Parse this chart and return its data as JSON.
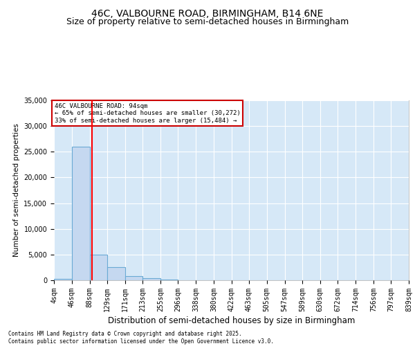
{
  "title": "46C, VALBOURNE ROAD, BIRMINGHAM, B14 6NE",
  "subtitle": "Size of property relative to semi-detached houses in Birmingham",
  "xlabel": "Distribution of semi-detached houses by size in Birmingham",
  "ylabel": "Number of semi-detached properties",
  "bin_edges": [
    4,
    46,
    88,
    129,
    171,
    213,
    255,
    296,
    338,
    380,
    422,
    463,
    505,
    547,
    589,
    630,
    672,
    714,
    756,
    797,
    839
  ],
  "bin_heights": [
    300,
    26000,
    5000,
    2500,
    800,
    400,
    150,
    50,
    0,
    0,
    0,
    0,
    0,
    0,
    0,
    0,
    0,
    0,
    0,
    0
  ],
  "bar_color": "#c5d8f0",
  "bar_edge_color": "#6aaad4",
  "red_line_x": 94,
  "ylim": [
    0,
    35000
  ],
  "background_color": "#d6e8f7",
  "annotation_text": "46C VALBOURNE ROAD: 94sqm\n← 65% of semi-detached houses are smaller (30,272)\n33% of semi-detached houses are larger (15,484) →",
  "annotation_box_color": "#ffffff",
  "annotation_box_edge": "#cc0000",
  "footer_line1": "Contains HM Land Registry data © Crown copyright and database right 2025.",
  "footer_line2": "Contains public sector information licensed under the Open Government Licence v3.0.",
  "tick_labels": [
    "4sqm",
    "46sqm",
    "88sqm",
    "129sqm",
    "171sqm",
    "213sqm",
    "255sqm",
    "296sqm",
    "338sqm",
    "380sqm",
    "422sqm",
    "463sqm",
    "505sqm",
    "547sqm",
    "589sqm",
    "630sqm",
    "672sqm",
    "714sqm",
    "756sqm",
    "797sqm",
    "839sqm"
  ],
  "yticks": [
    0,
    5000,
    10000,
    15000,
    20000,
    25000,
    30000,
    35000
  ],
  "grid_color": "#ffffff",
  "title_fontsize": 10,
  "subtitle_fontsize": 9,
  "tick_fontsize": 7,
  "ylabel_fontsize": 7.5,
  "xlabel_fontsize": 8.5,
  "footer_fontsize": 5.5
}
